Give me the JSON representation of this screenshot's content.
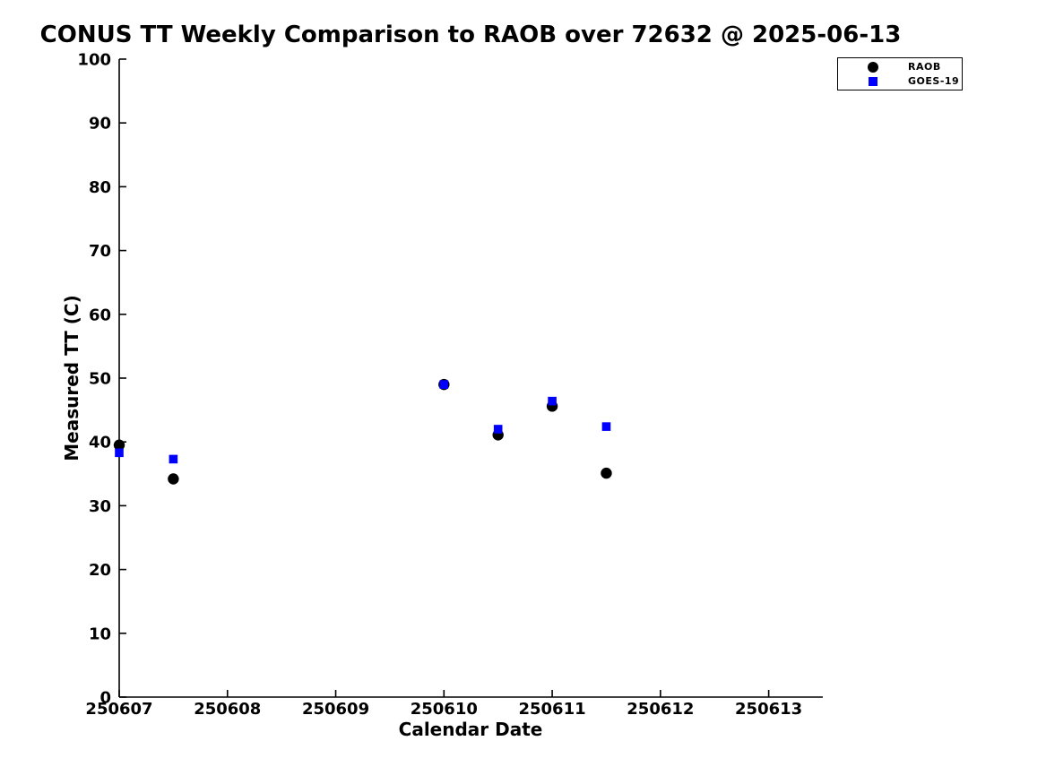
{
  "legend": {
    "items": [
      {
        "label": "RAOB",
        "marker": "circle",
        "color": "#000000"
      },
      {
        "label": "GOES-19",
        "marker": "square",
        "color": "#0000ff"
      }
    ]
  },
  "colors": {
    "axis": "#000000",
    "text": "#000000",
    "raob": "#000000",
    "goes19": "#0000ff",
    "background": "#ffffff"
  },
  "chart_data": {
    "type": "scatter",
    "title": "CONUS TT Weekly Comparison to RAOB over 72632 @ 2025-06-13",
    "xlabel": "Calendar Date",
    "ylabel": "Measured TT (C)",
    "xlim": [
      250607,
      250613.5
    ],
    "ylim": [
      0,
      100
    ],
    "x_ticks": [
      250607,
      250608,
      250609,
      250610,
      250611,
      250612,
      250613
    ],
    "y_ticks": [
      0,
      10,
      20,
      30,
      40,
      50,
      60,
      70,
      80,
      90,
      100
    ],
    "grid": false,
    "legend_position": "top-right",
    "series": [
      {
        "name": "RAOB",
        "marker": "circle",
        "color": "#000000",
        "points": [
          [
            250607.0,
            39.5
          ],
          [
            250607.5,
            34.2
          ],
          [
            250610.0,
            49.0
          ],
          [
            250610.5,
            41.1
          ],
          [
            250611.0,
            45.6
          ],
          [
            250611.5,
            35.1
          ]
        ]
      },
      {
        "name": "GOES-19",
        "marker": "square",
        "color": "#0000ff",
        "points": [
          [
            250607.0,
            38.3
          ],
          [
            250607.5,
            37.3
          ],
          [
            250610.0,
            49.0
          ],
          [
            250610.5,
            42.0
          ],
          [
            250611.0,
            46.4
          ],
          [
            250611.5,
            42.4
          ]
        ]
      }
    ]
  }
}
